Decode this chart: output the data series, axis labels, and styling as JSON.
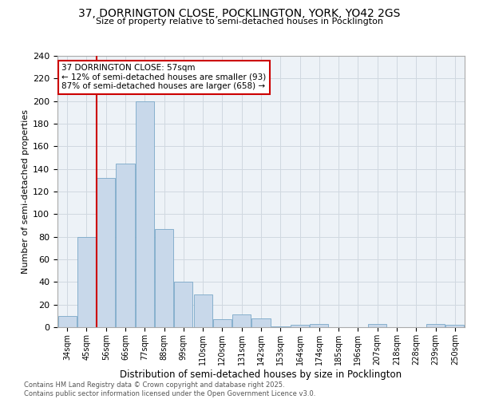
{
  "title_line1": "37, DORRINGTON CLOSE, POCKLINGTON, YORK, YO42 2GS",
  "title_line2": "Size of property relative to semi-detached houses in Pocklington",
  "xlabel": "Distribution of semi-detached houses by size in Pocklington",
  "ylabel": "Number of semi-detached properties",
  "categories": [
    "34sqm",
    "45sqm",
    "56sqm",
    "66sqm",
    "77sqm",
    "88sqm",
    "99sqm",
    "110sqm",
    "120sqm",
    "131sqm",
    "142sqm",
    "153sqm",
    "164sqm",
    "174sqm",
    "185sqm",
    "196sqm",
    "207sqm",
    "218sqm",
    "228sqm",
    "239sqm",
    "250sqm"
  ],
  "values": [
    10,
    80,
    132,
    145,
    200,
    87,
    40,
    29,
    7,
    11,
    8,
    1,
    2,
    3,
    0,
    0,
    3,
    0,
    0,
    3,
    2
  ],
  "bar_color": "#c8d8ea",
  "bar_edge_color": "#7aa8c8",
  "annotation_box_color": "#ffffff",
  "annotation_border_color": "#cc0000",
  "vline_color": "#cc0000",
  "vline_x_index": 2,
  "annotation_title": "37 DORRINGTON CLOSE: 57sqm",
  "annotation_line2": "← 12% of semi-detached houses are smaller (93)",
  "annotation_line3": "87% of semi-detached houses are larger (658) →",
  "ylim": [
    0,
    240
  ],
  "yticks": [
    0,
    20,
    40,
    60,
    80,
    100,
    120,
    140,
    160,
    180,
    200,
    220,
    240
  ],
  "grid_color": "#d0d8e0",
  "background_color": "#edf2f7",
  "footer_line1": "Contains HM Land Registry data © Crown copyright and database right 2025.",
  "footer_line2": "Contains public sector information licensed under the Open Government Licence v3.0."
}
